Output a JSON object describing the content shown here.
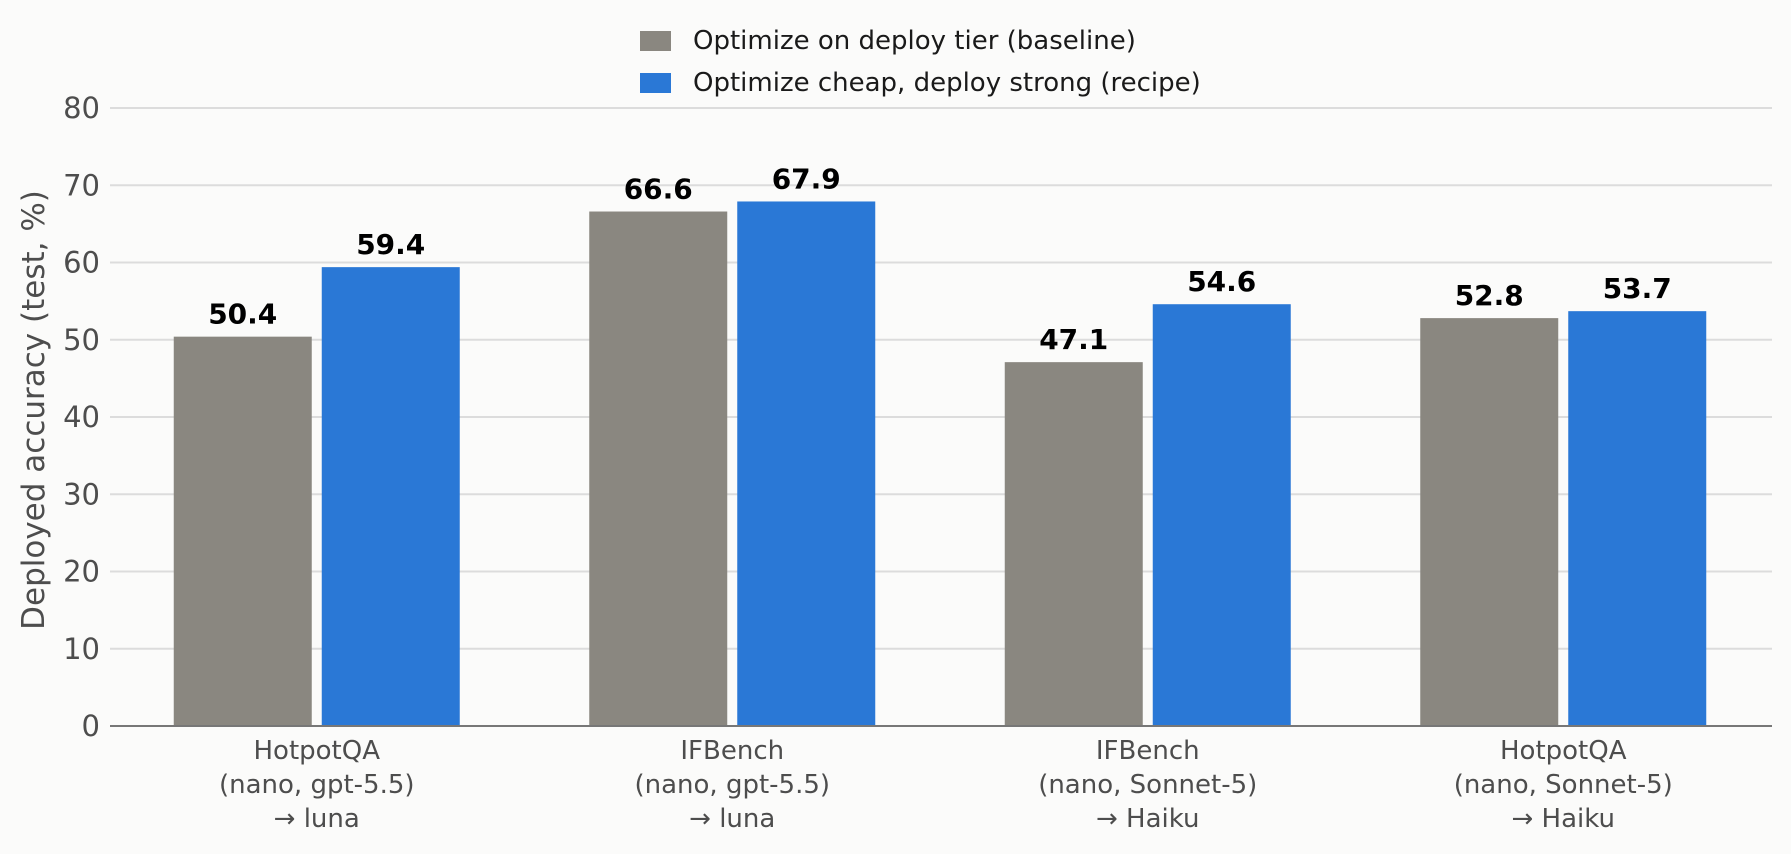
{
  "chart_data": {
    "type": "bar",
    "title": "",
    "xlabel": "",
    "ylabel": "Deployed accuracy  (test, %)",
    "ylim": [
      0,
      80
    ],
    "yticks": [
      0,
      10,
      20,
      30,
      40,
      50,
      60,
      70,
      80
    ],
    "grid": true,
    "legend_position": "top-center",
    "categories": [
      [
        "HotpotQA",
        "(nano, gpt-5.5)",
        "→ luna"
      ],
      [
        "IFBench",
        "(nano, gpt-5.5)",
        "→ luna"
      ],
      [
        "IFBench",
        "(nano, Sonnet-5)",
        "→ Haiku"
      ],
      [
        "HotpotQA",
        "(nano, Sonnet-5)",
        "→ Haiku"
      ]
    ],
    "series": [
      {
        "name": "Optimize on deploy tier (baseline)",
        "color": "#8a8780",
        "values": [
          50.4,
          66.6,
          47.1,
          52.8
        ]
      },
      {
        "name": "Optimize cheap, deploy strong (recipe)",
        "color": "#2a78d6",
        "values": [
          59.4,
          67.9,
          54.6,
          53.7
        ]
      }
    ]
  }
}
